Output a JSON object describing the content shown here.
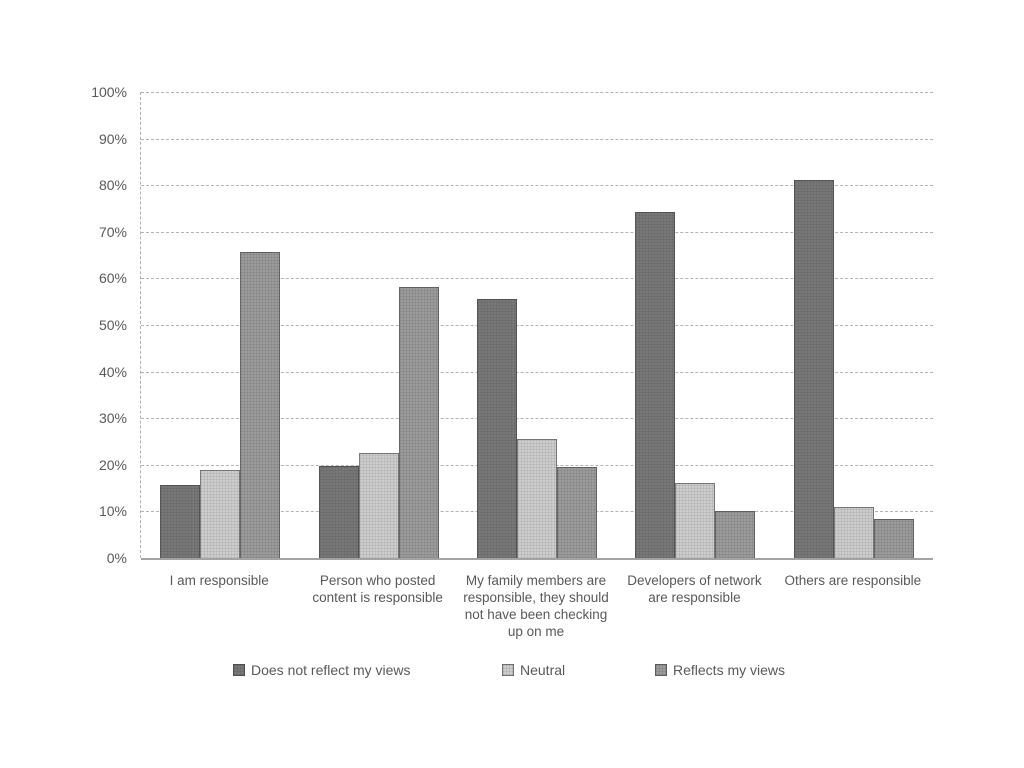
{
  "chart_data": {
    "type": "bar",
    "title": "",
    "xlabel": "",
    "ylabel": "",
    "ylim": [
      0,
      100
    ],
    "grid": true,
    "legend_position": "bottom",
    "y_axis": {
      "ticks": [
        "0%",
        "10%",
        "20%",
        "30%",
        "40%",
        "50%",
        "60%",
        "70%",
        "80%",
        "90%",
        "100%"
      ],
      "tick_step": 10
    },
    "categories": [
      "I am responsible",
      "Person who posted content is responsible",
      "My family members are responsible, they should not have been checking up on me",
      "Developers of network are responsible",
      "Others are responsible"
    ],
    "series": [
      {
        "name": "Does not reflect my views",
        "color": "#787878",
        "values": [
          15.7,
          19.8,
          55.5,
          74.3,
          81.2
        ]
      },
      {
        "name": "Neutral",
        "color": "#cdcdcd",
        "values": [
          18.9,
          22.5,
          25.5,
          16.0,
          11.0
        ]
      },
      {
        "name": "Reflects my views",
        "color": "#9b9b9b",
        "values": [
          65.7,
          58.2,
          19.5,
          10.0,
          8.3
        ]
      }
    ]
  }
}
